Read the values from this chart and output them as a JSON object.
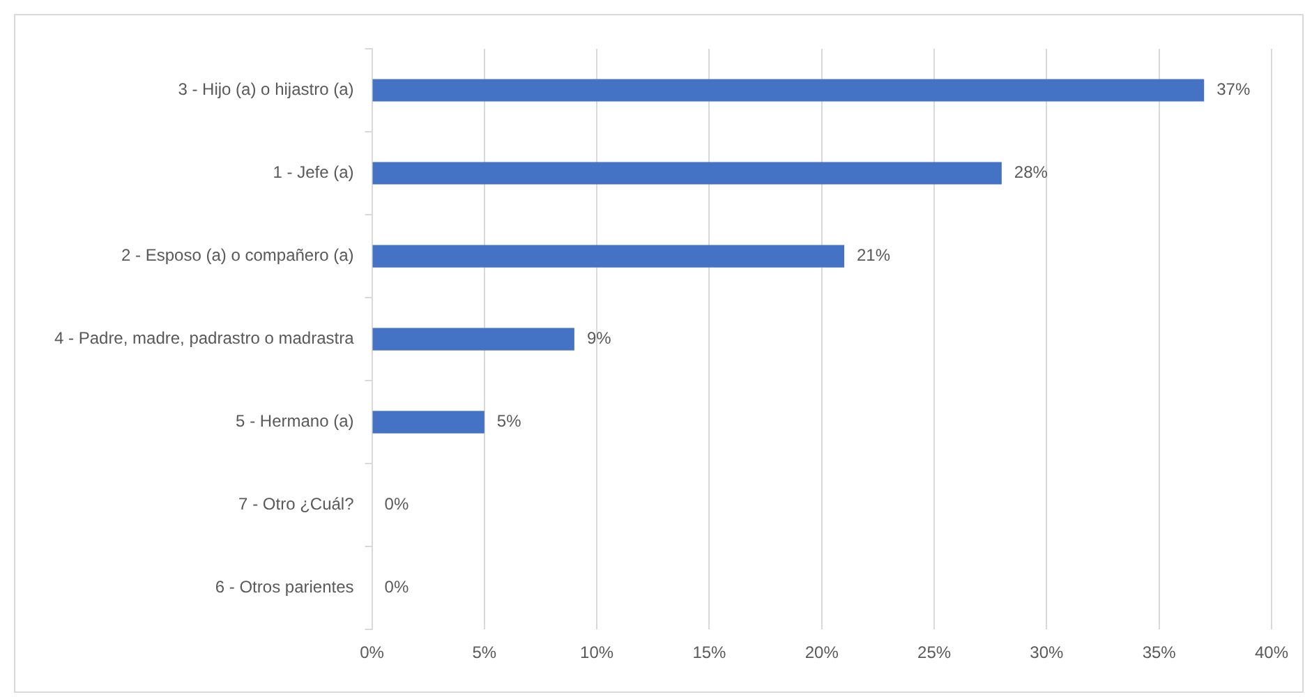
{
  "chart_data": {
    "type": "bar",
    "orientation": "horizontal",
    "categories": [
      "3 - Hijo (a) o hijastro (a)",
      "1 - Jefe (a)",
      "2 - Esposo (a) o compañero (a)",
      "4 - Padre, madre, padrastro o madrastra",
      "5 - Hermano (a)",
      "7 - Otro ¿Cuál?",
      "6 - Otros parientes"
    ],
    "values": [
      37,
      28,
      21,
      9,
      5,
      0,
      0
    ],
    "color": "#4472c4",
    "value_labels": [
      "37%",
      "28%",
      "21%",
      "9%",
      "5%",
      "0%",
      "0%"
    ],
    "xlim": [
      0,
      40
    ],
    "xticks": [
      {
        "value": 0,
        "label": "0%"
      },
      {
        "value": 5,
        "label": "5%"
      },
      {
        "value": 10,
        "label": "10%"
      },
      {
        "value": 15,
        "label": "15%"
      },
      {
        "value": 20,
        "label": "20%"
      },
      {
        "value": 25,
        "label": "25%"
      },
      {
        "value": 30,
        "label": "30%"
      },
      {
        "value": 35,
        "label": "35%"
      },
      {
        "value": 40,
        "label": "40%"
      }
    ],
    "grid": "x"
  }
}
